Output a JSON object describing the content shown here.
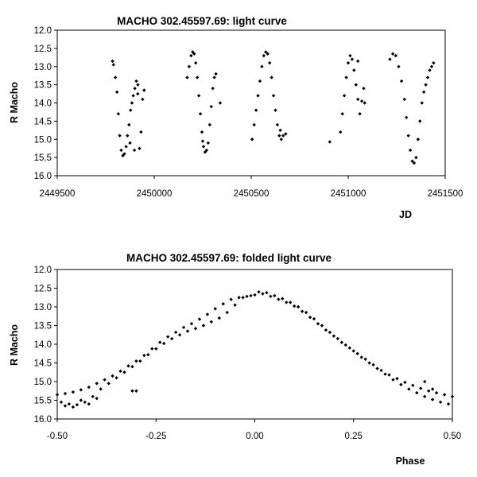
{
  "chart_data": [
    {
      "type": "scatter",
      "title": "MACHO 302.45597.69: light curve",
      "xlabel": "JD",
      "ylabel": "R Macho",
      "xlim": [
        2449500,
        2451500
      ],
      "ylim": [
        12.0,
        16.0
      ],
      "y_inverted": true,
      "xticks": [
        "2449500",
        "2450000",
        "2450500",
        "2451000",
        "2451500"
      ],
      "yticks": [
        "12.0",
        "12.5",
        "13.0",
        "13.5",
        "14.0",
        "14.5",
        "15.0",
        "15.5",
        "16.0"
      ],
      "grid": false,
      "legend": "none",
      "marker_color": "#000000",
      "series": [
        {
          "x": [
            2449785,
            2449790,
            2449800,
            2449808,
            2449815,
            2449822,
            2449830,
            2449838,
            2449846,
            2449855,
            2449862,
            2449870,
            2449878,
            2449885,
            2449892,
            2449900,
            2449908,
            2449916,
            2449924,
            2449932,
            2449940,
            2449948,
            2449875,
            2449898,
            2449915,
            2450170,
            2450180,
            2450190,
            2450198,
            2450206,
            2450214,
            2450222,
            2450230,
            2450238,
            2450246,
            2450254,
            2450262,
            2450270,
            2450278,
            2450286,
            2450294,
            2450302,
            2450310,
            2450318,
            2450250,
            2450340,
            2450505,
            2450515,
            2450525,
            2450535,
            2450545,
            2450555,
            2450565,
            2450575,
            2450585,
            2450595,
            2450605,
            2450615,
            2450625,
            2450635,
            2450645,
            2450655,
            2450665,
            2450678,
            2450650,
            2450905,
            2450960,
            2450970,
            2450980,
            2450990,
            2451000,
            2451010,
            2451020,
            2451030,
            2451040,
            2451050,
            2451060,
            2451070,
            2451080,
            2451050,
            2451085,
            2451215,
            2451230,
            2451245,
            2451260,
            2451275,
            2451290,
            2451300,
            2451310,
            2451320,
            2451330,
            2451340,
            2451350,
            2451360,
            2451370,
            2451380,
            2451390,
            2451400,
            2451410,
            2451420,
            2451430,
            2451440
          ],
          "y": [
            12.85,
            12.95,
            13.3,
            13.7,
            14.3,
            14.9,
            15.3,
            15.45,
            15.4,
            15.2,
            14.9,
            14.6,
            14.2,
            14.0,
            13.8,
            13.6,
            13.4,
            13.5,
            15.25,
            14.8,
            13.9,
            13.65,
            15.1,
            15.3,
            13.75,
            13.3,
            13.0,
            12.7,
            12.6,
            12.65,
            12.9,
            13.3,
            13.8,
            14.3,
            14.8,
            15.2,
            15.35,
            15.3,
            15.1,
            14.6,
            14.1,
            13.6,
            13.3,
            13.2,
            15.05,
            14.0,
            15.0,
            14.6,
            14.2,
            13.8,
            13.4,
            13.0,
            12.7,
            12.6,
            12.65,
            12.9,
            13.3,
            13.8,
            14.2,
            14.6,
            14.9,
            15.0,
            14.9,
            14.85,
            14.75,
            15.07,
            14.8,
            14.3,
            13.8,
            13.3,
            12.9,
            12.7,
            12.8,
            13.1,
            13.5,
            13.9,
            14.3,
            13.95,
            13.6,
            12.85,
            14.0,
            12.8,
            12.65,
            12.7,
            13.0,
            13.4,
            13.9,
            14.4,
            14.9,
            15.3,
            15.6,
            15.65,
            15.5,
            15.0,
            14.5,
            14.0,
            13.7,
            13.5,
            13.3,
            13.1,
            13.0,
            12.9
          ],
          "name": ""
        }
      ]
    },
    {
      "type": "scatter",
      "title": "MACHO 302.45597.69: folded light curve",
      "xlabel": "Phase",
      "ylabel": "R Macho",
      "xlim": [
        -0.5,
        0.5
      ],
      "ylim": [
        12.0,
        16.0
      ],
      "y_inverted": true,
      "xticks": [
        "-0.50",
        "-0.25",
        "0.00",
        "0.25",
        "0.50"
      ],
      "yticks": [
        "12.0",
        "12.5",
        "13.0",
        "13.5",
        "14.0",
        "14.5",
        "15.0",
        "15.5",
        "16.0"
      ],
      "grid": false,
      "legend": "none",
      "marker_color": "#000000",
      "series": [
        {
          "x": [
            -0.5,
            -0.48,
            -0.46,
            -0.44,
            -0.42,
            -0.4,
            -0.38,
            -0.36,
            -0.34,
            -0.32,
            -0.3,
            -0.28,
            -0.26,
            -0.24,
            -0.22,
            -0.2,
            -0.18,
            -0.16,
            -0.14,
            -0.12,
            -0.1,
            -0.08,
            -0.06,
            -0.04,
            -0.02,
            0.0,
            0.02,
            0.04,
            0.06,
            0.08,
            0.1,
            0.12,
            0.14,
            0.16,
            0.18,
            0.2,
            0.22,
            0.24,
            0.26,
            0.28,
            0.3,
            0.32,
            0.34,
            0.36,
            0.38,
            0.4,
            0.42,
            0.44,
            0.46,
            0.48,
            0.5,
            -0.49,
            -0.47,
            -0.45,
            -0.43,
            -0.41,
            -0.39,
            -0.37,
            -0.35,
            -0.33,
            -0.31,
            -0.29,
            -0.27,
            -0.25,
            -0.23,
            -0.21,
            -0.19,
            -0.17,
            -0.15,
            -0.13,
            -0.11,
            -0.09,
            -0.07,
            -0.05,
            -0.03,
            -0.01,
            0.01,
            0.03,
            0.05,
            0.07,
            0.09,
            0.11,
            0.13,
            0.15,
            0.17,
            0.19,
            0.21,
            0.23,
            0.25,
            0.27,
            0.29,
            0.31,
            0.33,
            0.35,
            0.37,
            0.39,
            0.41,
            0.43,
            0.45,
            0.47,
            0.49,
            -0.48,
            -0.46,
            -0.44,
            -0.42,
            -0.4,
            -0.31,
            -0.3,
            0.43,
            0.45
          ],
          "y": [
            15.35,
            15.32,
            15.28,
            15.22,
            15.15,
            15.05,
            14.95,
            14.85,
            14.72,
            14.58,
            14.45,
            14.3,
            14.12,
            13.95,
            13.8,
            13.68,
            13.55,
            13.45,
            13.33,
            13.2,
            13.05,
            12.92,
            12.8,
            12.75,
            12.72,
            12.68,
            12.65,
            12.72,
            12.8,
            12.88,
            12.98,
            13.12,
            13.28,
            13.45,
            13.62,
            13.78,
            13.95,
            14.1,
            14.25,
            14.4,
            14.55,
            14.7,
            14.82,
            14.92,
            15.02,
            15.1,
            15.18,
            15.25,
            15.3,
            15.35,
            15.4,
            15.55,
            15.6,
            15.62,
            15.55,
            15.4,
            15.2,
            15.05,
            14.9,
            14.75,
            14.6,
            14.45,
            14.28,
            14.12,
            13.98,
            13.85,
            13.75,
            13.65,
            13.58,
            13.5,
            13.4,
            13.3,
            13.15,
            12.95,
            12.75,
            12.7,
            12.6,
            12.62,
            12.7,
            12.78,
            12.88,
            13.0,
            13.15,
            13.32,
            13.5,
            13.68,
            13.85,
            14.02,
            14.18,
            14.35,
            14.5,
            14.65,
            14.8,
            14.95,
            15.08,
            15.2,
            15.3,
            15.4,
            15.48,
            15.55,
            15.6,
            15.65,
            15.68,
            15.5,
            15.6,
            15.45,
            15.25,
            15.25,
            15.0,
            15.2
          ],
          "name": ""
        }
      ]
    }
  ]
}
